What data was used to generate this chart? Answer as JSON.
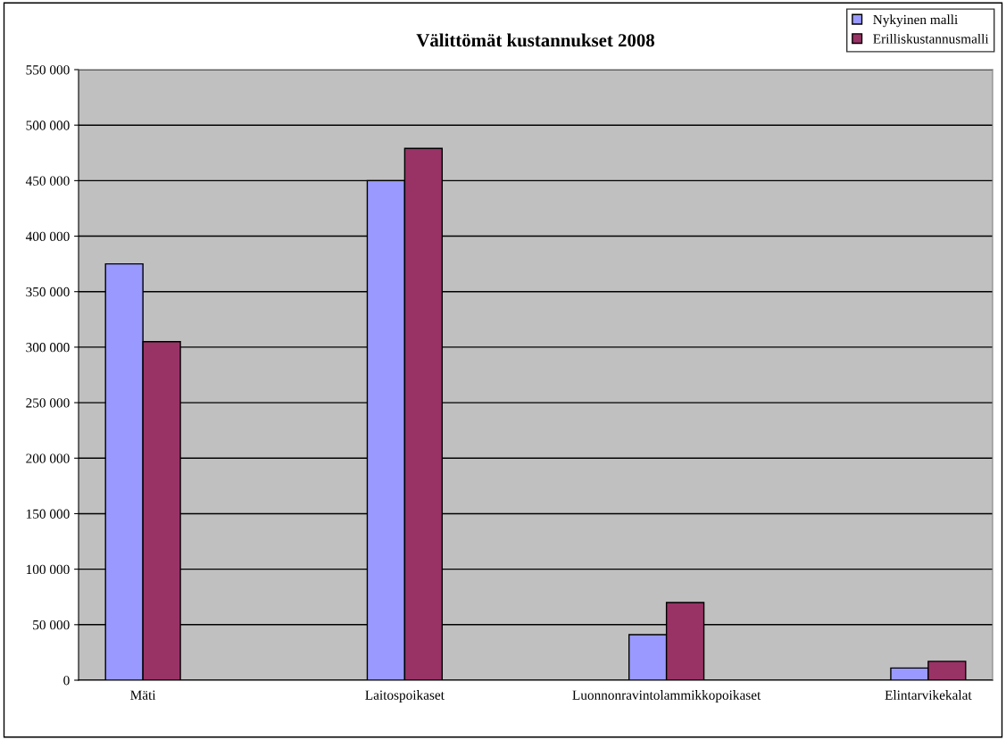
{
  "chart_data": {
    "type": "bar",
    "title": "Välittömät kustannukset 2008",
    "categories": [
      "Mäti",
      "Laitospoikaset",
      "Luonnonravintolammikkopoikaset",
      "Elintarvikekalat"
    ],
    "series": [
      {
        "name": "Nykyinen malli",
        "color": "#9999ff",
        "values": [
          375000,
          450000,
          41000,
          11000
        ]
      },
      {
        "name": "Erilliskustannusmalli",
        "color": "#993366",
        "values": [
          305000,
          479000,
          70000,
          17000
        ]
      }
    ],
    "ylim": [
      0,
      550000
    ],
    "yticks": [
      {
        "value": 0,
        "label": "0"
      },
      {
        "value": 50000,
        "label": "50 000"
      },
      {
        "value": 100000,
        "label": "100 000"
      },
      {
        "value": 150000,
        "label": "150 000"
      },
      {
        "value": 200000,
        "label": "200 000"
      },
      {
        "value": 250000,
        "label": "250 000"
      },
      {
        "value": 300000,
        "label": "300 000"
      },
      {
        "value": 350000,
        "label": "350 000"
      },
      {
        "value": 400000,
        "label": "400 000"
      },
      {
        "value": 450000,
        "label": "450 000"
      },
      {
        "value": 500000,
        "label": "500 000"
      },
      {
        "value": 550000,
        "label": "550 000"
      }
    ],
    "grid": "y",
    "legend": "top right"
  }
}
